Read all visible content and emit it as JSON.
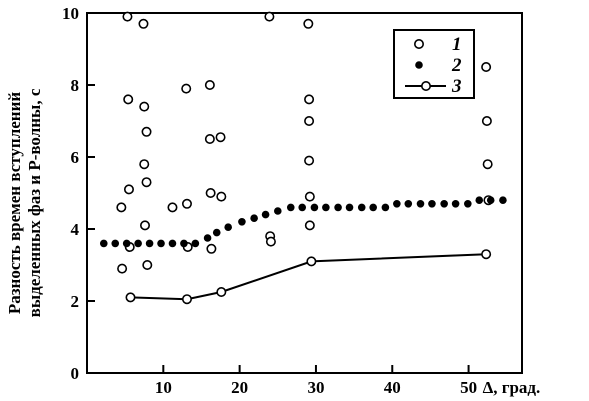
{
  "chart_data": {
    "type": "scatter",
    "ylabel_line1": "Разность времен вступлений",
    "ylabel_line2": "выделенных фаз и P-волны, с",
    "xlabel": "Δ, град.",
    "xlim": [
      0,
      57
    ],
    "ylim": [
      0,
      10
    ],
    "xticks": [
      10,
      20,
      30,
      40,
      50
    ],
    "yticks": [
      0,
      2,
      4,
      6,
      8,
      10
    ],
    "grid": false,
    "legend_position": "top-right",
    "series": [
      {
        "name": "1",
        "marker": "open-circle",
        "line": false,
        "points": [
          [
            4.5,
            4.6
          ],
          [
            4.6,
            2.9
          ],
          [
            5.3,
            9.9
          ],
          [
            5.4,
            7.6
          ],
          [
            5.5,
            5.1
          ],
          [
            5.6,
            3.5
          ],
          [
            7.4,
            9.7
          ],
          [
            7.5,
            7.4
          ],
          [
            7.5,
            5.8
          ],
          [
            7.6,
            4.1
          ],
          [
            7.8,
            6.7
          ],
          [
            7.8,
            5.3
          ],
          [
            7.9,
            3.0
          ],
          [
            11.2,
            4.6
          ],
          [
            13.0,
            7.9
          ],
          [
            13.1,
            4.7
          ],
          [
            13.2,
            3.5
          ],
          [
            16.1,
            8.0
          ],
          [
            16.1,
            6.5
          ],
          [
            16.2,
            5.0
          ],
          [
            16.3,
            3.45
          ],
          [
            17.5,
            6.55
          ],
          [
            17.6,
            4.9
          ],
          [
            23.9,
            9.9
          ],
          [
            24.0,
            3.8
          ],
          [
            24.1,
            3.65
          ],
          [
            29.0,
            9.7
          ],
          [
            29.1,
            7.6
          ],
          [
            29.1,
            7.0
          ],
          [
            29.1,
            5.9
          ],
          [
            29.2,
            4.9
          ],
          [
            29.2,
            4.1
          ],
          [
            52.3,
            8.5
          ],
          [
            52.4,
            7.0
          ],
          [
            52.5,
            5.8
          ],
          [
            52.6,
            4.8
          ]
        ]
      },
      {
        "name": "2",
        "marker": "filled-dot",
        "line": false,
        "points": [
          [
            2.2,
            3.6
          ],
          [
            3.7,
            3.6
          ],
          [
            5.2,
            3.6
          ],
          [
            6.7,
            3.6
          ],
          [
            8.2,
            3.6
          ],
          [
            9.7,
            3.6
          ],
          [
            11.2,
            3.6
          ],
          [
            12.7,
            3.6
          ],
          [
            14.2,
            3.6
          ],
          [
            15.8,
            3.75
          ],
          [
            17.0,
            3.9
          ],
          [
            18.5,
            4.05
          ],
          [
            20.3,
            4.2
          ],
          [
            21.9,
            4.3
          ],
          [
            23.4,
            4.4
          ],
          [
            25.0,
            4.5
          ],
          [
            26.7,
            4.6
          ],
          [
            28.2,
            4.6
          ],
          [
            29.8,
            4.6
          ],
          [
            31.3,
            4.6
          ],
          [
            32.9,
            4.6
          ],
          [
            34.4,
            4.6
          ],
          [
            36.0,
            4.6
          ],
          [
            37.5,
            4.6
          ],
          [
            39.1,
            4.6
          ],
          [
            40.6,
            4.7
          ],
          [
            42.1,
            4.7
          ],
          [
            43.7,
            4.7
          ],
          [
            45.2,
            4.7
          ],
          [
            46.8,
            4.7
          ],
          [
            48.3,
            4.7
          ],
          [
            49.9,
            4.7
          ],
          [
            51.4,
            4.8
          ],
          [
            52.9,
            4.8
          ],
          [
            54.5,
            4.8
          ]
        ]
      },
      {
        "name": "3",
        "marker": "open-circle",
        "line": true,
        "points": [
          [
            5.7,
            2.1
          ],
          [
            13.1,
            2.05
          ],
          [
            17.6,
            2.25
          ],
          [
            29.4,
            3.1
          ],
          [
            52.3,
            3.3
          ]
        ]
      }
    ]
  }
}
